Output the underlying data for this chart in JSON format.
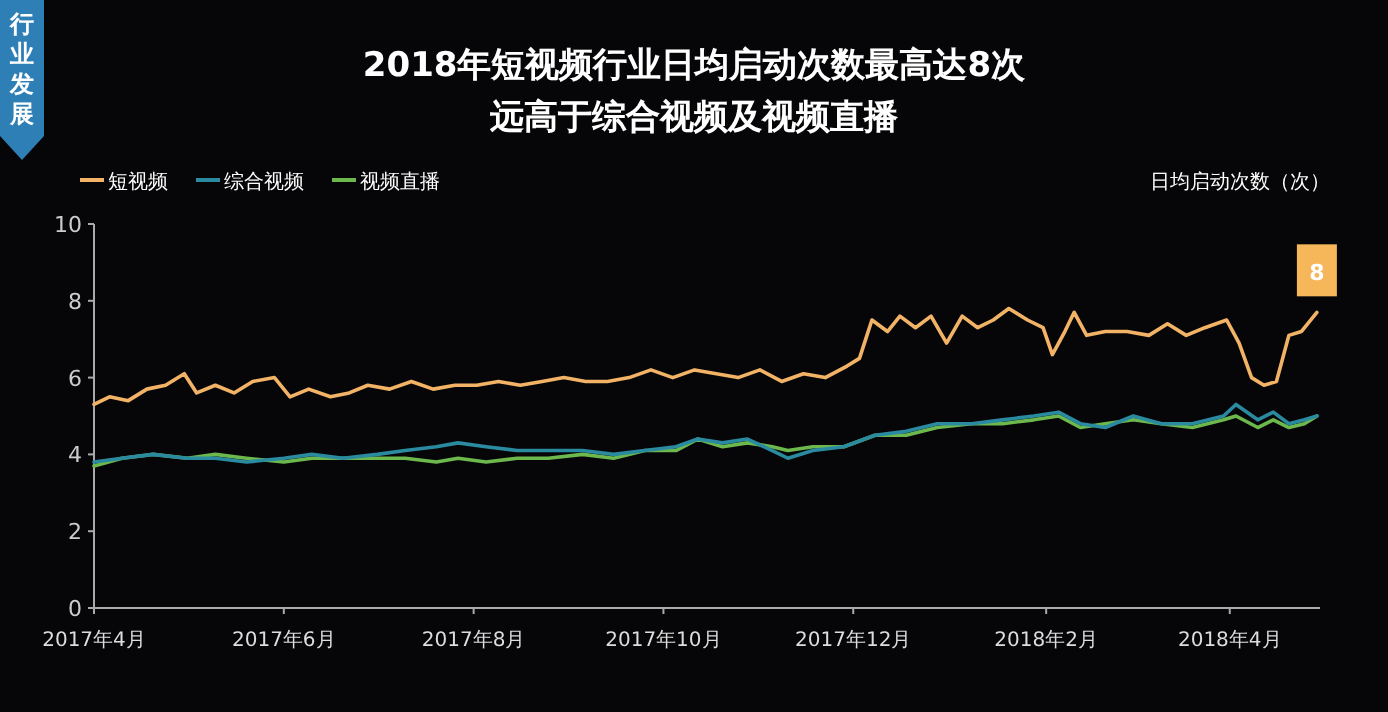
{
  "chart_data": {
    "type": "line",
    "title": "2018年短视频行业日均启动次数最高达8次",
    "subtitle": "远高于综合视频及视频直播",
    "ylabel": "日均启动次数（次）",
    "annotations": [
      "行业发展",
      {
        "text": "8",
        "x": "2018-04-29",
        "y": 7.7
      }
    ],
    "xlim": [
      "2017-04-01",
      "2018-04-30"
    ],
    "xticks": [
      {
        "value": "2017-04-01",
        "label": "2017年4月"
      },
      {
        "value": "2017-06-01",
        "label": "2017年6月"
      },
      {
        "value": "2017-08-01",
        "label": "2017年8月"
      },
      {
        "value": "2017-10-01",
        "label": "2017年10月"
      },
      {
        "value": "2017-12-01",
        "label": "2017年12月"
      },
      {
        "value": "2018-02-01",
        "label": "2018年2月"
      },
      {
        "value": "2018-04-01",
        "label": "2018年4月"
      }
    ],
    "ylim": [
      0,
      10
    ],
    "yticks": [
      0,
      2,
      4,
      6,
      8,
      10
    ],
    "grid": false,
    "legend": "top left",
    "marker": "none",
    "line_style": "solid",
    "series": [
      {
        "name": "短视频",
        "color": "#f2b366",
        "x": [
          "2017-04-01",
          "2017-04-06",
          "2017-04-12",
          "2017-04-18",
          "2017-04-24",
          "2017-04-30",
          "2017-05-04",
          "2017-05-10",
          "2017-05-16",
          "2017-05-22",
          "2017-05-29",
          "2017-06-03",
          "2017-06-09",
          "2017-06-16",
          "2017-06-22",
          "2017-06-28",
          "2017-07-05",
          "2017-07-12",
          "2017-07-19",
          "2017-07-26",
          "2017-08-02",
          "2017-08-09",
          "2017-08-16",
          "2017-08-23",
          "2017-08-30",
          "2017-09-06",
          "2017-09-13",
          "2017-09-20",
          "2017-09-27",
          "2017-10-04",
          "2017-10-11",
          "2017-10-18",
          "2017-10-25",
          "2017-11-01",
          "2017-11-08",
          "2017-11-15",
          "2017-11-22",
          "2017-11-29",
          "2017-12-03",
          "2017-12-07",
          "2017-12-12",
          "2017-12-16",
          "2017-12-21",
          "2017-12-26",
          "2017-12-31",
          "2018-01-05",
          "2018-01-10",
          "2018-01-15",
          "2018-01-20",
          "2018-01-26",
          "2018-01-31",
          "2018-02-03",
          "2018-02-07",
          "2018-02-10",
          "2018-02-14",
          "2018-02-20",
          "2018-02-27",
          "2018-03-06",
          "2018-03-12",
          "2018-03-18",
          "2018-03-24",
          "2018-03-31",
          "2018-04-04",
          "2018-04-08",
          "2018-04-12",
          "2018-04-16",
          "2018-04-20",
          "2018-04-24",
          "2018-04-29"
        ],
        "values": [
          5.3,
          5.5,
          5.4,
          5.7,
          5.8,
          6.1,
          5.6,
          5.8,
          5.6,
          5.9,
          6.0,
          5.5,
          5.7,
          5.5,
          5.6,
          5.8,
          5.7,
          5.9,
          5.7,
          5.8,
          5.8,
          5.9,
          5.8,
          5.9,
          6.0,
          5.9,
          5.9,
          6.0,
          6.2,
          6.0,
          6.2,
          6.1,
          6.0,
          6.2,
          5.9,
          6.1,
          6.0,
          6.3,
          6.5,
          7.5,
          7.2,
          7.6,
          7.3,
          7.6,
          6.9,
          7.6,
          7.3,
          7.5,
          7.8,
          7.5,
          7.3,
          6.6,
          7.2,
          7.7,
          7.1,
          7.2,
          7.2,
          7.1,
          7.4,
          7.1,
          7.3,
          7.5,
          6.9,
          6.0,
          5.8,
          5.9,
          7.1,
          7.2,
          7.7
        ]
      },
      {
        "name": "综合视频",
        "color": "#2a8aa0",
        "x": [
          "2017-04-01",
          "2017-04-10",
          "2017-04-20",
          "2017-05-01",
          "2017-05-10",
          "2017-05-20",
          "2017-06-01",
          "2017-06-10",
          "2017-06-20",
          "2017-07-01",
          "2017-07-10",
          "2017-07-20",
          "2017-07-27",
          "2017-08-05",
          "2017-08-15",
          "2017-08-25",
          "2017-09-05",
          "2017-09-15",
          "2017-09-25",
          "2017-10-05",
          "2017-10-12",
          "2017-10-20",
          "2017-10-28",
          "2017-11-05",
          "2017-11-10",
          "2017-11-18",
          "2017-11-28",
          "2017-12-08",
          "2017-12-18",
          "2017-12-28",
          "2018-01-08",
          "2018-01-18",
          "2018-01-28",
          "2018-02-05",
          "2018-02-12",
          "2018-02-20",
          "2018-03-01",
          "2018-03-10",
          "2018-03-20",
          "2018-03-30",
          "2018-04-03",
          "2018-04-10",
          "2018-04-15",
          "2018-04-20",
          "2018-04-25",
          "2018-04-29"
        ],
        "values": [
          3.8,
          3.9,
          4.0,
          3.9,
          3.9,
          3.8,
          3.9,
          4.0,
          3.9,
          4.0,
          4.1,
          4.2,
          4.3,
          4.2,
          4.1,
          4.1,
          4.1,
          4.0,
          4.1,
          4.2,
          4.4,
          4.3,
          4.4,
          4.1,
          3.9,
          4.1,
          4.2,
          4.5,
          4.6,
          4.8,
          4.8,
          4.9,
          5.0,
          5.1,
          4.8,
          4.7,
          5.0,
          4.8,
          4.8,
          5.0,
          5.3,
          4.9,
          5.1,
          4.8,
          4.9,
          5.0
        ]
      },
      {
        "name": "视频直播",
        "color": "#6cb84c",
        "x": [
          "2017-04-01",
          "2017-04-10",
          "2017-04-20",
          "2017-05-01",
          "2017-05-10",
          "2017-05-20",
          "2017-06-01",
          "2017-06-10",
          "2017-06-20",
          "2017-07-01",
          "2017-07-10",
          "2017-07-20",
          "2017-07-27",
          "2017-08-05",
          "2017-08-15",
          "2017-08-25",
          "2017-09-05",
          "2017-09-15",
          "2017-09-25",
          "2017-10-05",
          "2017-10-12",
          "2017-10-20",
          "2017-10-28",
          "2017-11-05",
          "2017-11-10",
          "2017-11-18",
          "2017-11-28",
          "2017-12-08",
          "2017-12-18",
          "2017-12-28",
          "2018-01-08",
          "2018-01-18",
          "2018-01-28",
          "2018-02-05",
          "2018-02-12",
          "2018-02-20",
          "2018-03-01",
          "2018-03-10",
          "2018-03-20",
          "2018-03-30",
          "2018-04-03",
          "2018-04-10",
          "2018-04-15",
          "2018-04-20",
          "2018-04-25",
          "2018-04-29"
        ],
        "values": [
          3.7,
          3.9,
          4.0,
          3.9,
          4.0,
          3.9,
          3.8,
          3.9,
          3.9,
          3.9,
          3.9,
          3.8,
          3.9,
          3.8,
          3.9,
          3.9,
          4.0,
          3.9,
          4.1,
          4.1,
          4.4,
          4.2,
          4.3,
          4.2,
          4.1,
          4.2,
          4.2,
          4.5,
          4.5,
          4.7,
          4.8,
          4.8,
          4.9,
          5.0,
          4.7,
          4.8,
          4.9,
          4.8,
          4.7,
          4.9,
          5.0,
          4.7,
          4.9,
          4.7,
          4.8,
          5.0
        ]
      }
    ]
  }
}
